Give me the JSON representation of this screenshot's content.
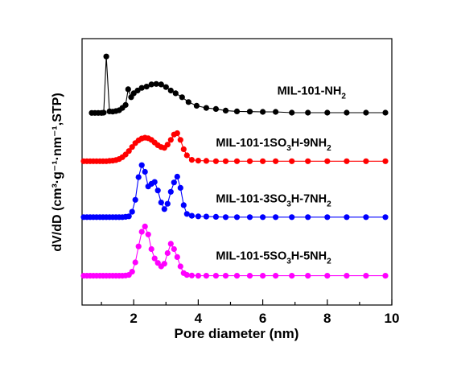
{
  "chart_data": {
    "type": "line",
    "title": "",
    "xlabel": "Pore diameter (nm)",
    "ylabel": "dV/dD (cm³·g⁻¹·nm⁻¹,STP)",
    "xlim": [
      0.4,
      10
    ],
    "ylim": [
      0,
      10
    ],
    "xticks": [
      2,
      4,
      6,
      8,
      10
    ],
    "grid": false,
    "legend": "inline labels to the right of each curve",
    "y_ticks_labeled": false,
    "series": [
      {
        "name": "MIL-101-NH₂",
        "color": "#000000",
        "x": [
          0.7,
          0.8,
          0.9,
          1.0,
          1.07,
          1.15,
          1.25,
          1.35,
          1.45,
          1.55,
          1.65,
          1.75,
          1.83,
          1.92,
          2.0,
          2.12,
          2.25,
          2.4,
          2.55,
          2.7,
          2.85,
          3.0,
          3.15,
          3.3,
          3.5,
          3.7,
          3.95,
          4.25,
          4.55,
          4.85,
          5.2,
          5.6,
          6.0,
          6.4,
          6.9,
          7.4,
          8.0,
          8.6,
          9.2,
          9.8
        ],
        "y": [
          7.21,
          7.21,
          7.21,
          7.21,
          7.22,
          9.33,
          7.27,
          7.26,
          7.28,
          7.31,
          7.4,
          7.51,
          8.1,
          7.8,
          7.95,
          8.05,
          8.15,
          8.2,
          8.28,
          8.3,
          8.28,
          8.18,
          8.05,
          7.95,
          7.8,
          7.62,
          7.48,
          7.4,
          7.36,
          7.3,
          7.27,
          7.26,
          7.25,
          7.25,
          7.22,
          7.22,
          7.22,
          7.22,
          7.22,
          7.22
        ]
      },
      {
        "name": "MIL-101-1SO₃H-9NH₂",
        "color": "#ff0000",
        "x": [
          0.45,
          0.55,
          0.65,
          0.75,
          0.85,
          0.95,
          1.05,
          1.15,
          1.25,
          1.35,
          1.45,
          1.55,
          1.65,
          1.75,
          1.85,
          1.95,
          2.05,
          2.15,
          2.25,
          2.35,
          2.45,
          2.55,
          2.65,
          2.75,
          2.85,
          2.95,
          3.05,
          3.15,
          3.25,
          3.35,
          3.45,
          3.55,
          3.65,
          3.8,
          4.0,
          4.25,
          4.55,
          4.85,
          5.2,
          5.6,
          6.0,
          6.4,
          6.9,
          7.4,
          8.0,
          8.6,
          9.2,
          9.8
        ],
        "y": [
          5.4,
          5.4,
          5.4,
          5.4,
          5.4,
          5.4,
          5.4,
          5.4,
          5.41,
          5.42,
          5.44,
          5.48,
          5.55,
          5.65,
          5.78,
          5.93,
          6.08,
          6.18,
          6.25,
          6.28,
          6.26,
          6.2,
          6.1,
          6.0,
          5.93,
          5.9,
          6.02,
          6.2,
          6.4,
          6.45,
          6.2,
          5.85,
          5.62,
          5.45,
          5.42,
          5.41,
          5.4,
          5.4,
          5.4,
          5.4,
          5.4,
          5.4,
          5.4,
          5.4,
          5.4,
          5.4,
          5.4,
          5.4
        ]
      },
      {
        "name": "MIL-101-3SO₃H-7NH₂",
        "color": "#0000ff",
        "x": [
          0.45,
          0.55,
          0.65,
          0.75,
          0.85,
          0.95,
          1.05,
          1.15,
          1.25,
          1.35,
          1.45,
          1.55,
          1.65,
          1.75,
          1.85,
          1.95,
          2.05,
          2.15,
          2.25,
          2.35,
          2.45,
          2.55,
          2.65,
          2.75,
          2.85,
          2.95,
          3.05,
          3.15,
          3.25,
          3.35,
          3.45,
          3.55,
          3.65,
          3.8,
          4.0,
          4.25,
          4.55,
          4.85,
          5.2,
          5.6,
          6.0,
          6.4,
          6.9,
          7.4,
          8.0,
          8.6,
          9.2,
          9.8
        ],
        "y": [
          3.3,
          3.3,
          3.3,
          3.3,
          3.3,
          3.3,
          3.3,
          3.3,
          3.3,
          3.3,
          3.3,
          3.3,
          3.3,
          3.31,
          3.33,
          3.5,
          3.95,
          4.8,
          5.25,
          5.0,
          4.45,
          4.55,
          4.62,
          4.3,
          3.85,
          3.6,
          3.8,
          4.25,
          4.6,
          4.82,
          4.4,
          3.75,
          3.42,
          3.35,
          3.33,
          3.32,
          3.31,
          3.3,
          3.3,
          3.3,
          3.3,
          3.3,
          3.3,
          3.3,
          3.3,
          3.3,
          3.3,
          3.3
        ]
      },
      {
        "name": "MIL-101-5SO₃H-5NH₂",
        "color": "#ff00ff",
        "x": [
          0.45,
          0.55,
          0.65,
          0.75,
          0.85,
          0.95,
          1.05,
          1.15,
          1.25,
          1.35,
          1.45,
          1.55,
          1.65,
          1.75,
          1.85,
          1.95,
          2.05,
          2.15,
          2.25,
          2.35,
          2.45,
          2.55,
          2.65,
          2.75,
          2.85,
          2.95,
          3.05,
          3.15,
          3.25,
          3.35,
          3.45,
          3.55,
          3.65,
          3.8,
          4.0,
          4.25,
          4.55,
          4.85,
          5.2,
          5.6,
          6.0,
          6.4,
          6.9,
          7.4,
          8.0,
          8.6,
          9.2,
          9.8
        ],
        "y": [
          1.1,
          1.1,
          1.1,
          1.1,
          1.1,
          1.1,
          1.1,
          1.1,
          1.1,
          1.1,
          1.1,
          1.1,
          1.1,
          1.11,
          1.13,
          1.25,
          1.6,
          2.2,
          2.75,
          2.95,
          2.65,
          2.1,
          1.75,
          1.58,
          1.45,
          1.55,
          1.95,
          2.3,
          2.1,
          1.8,
          1.45,
          1.2,
          1.13,
          1.11,
          1.1,
          1.1,
          1.1,
          1.1,
          1.1,
          1.1,
          1.1,
          1.1,
          1.1,
          1.1,
          1.1,
          1.1,
          1.1,
          1.1
        ]
      }
    ],
    "annotations": [
      {
        "parts": [
          [
            "MIL-101-NH",
            ""
          ],
          [
            "2",
            "sub"
          ]
        ],
        "x": 6.45,
        "y": 7.9
      },
      {
        "parts": [
          [
            "MIL-101-1SO",
            ""
          ],
          [
            "3",
            "sub"
          ],
          [
            "H-9NH",
            ""
          ],
          [
            "2",
            "sub"
          ]
        ],
        "x": 4.55,
        "y": 5.95
      },
      {
        "parts": [
          [
            "MIL-101-3SO",
            ""
          ],
          [
            "3",
            "sub"
          ],
          [
            "H-7NH",
            ""
          ],
          [
            "2",
            "sub"
          ]
        ],
        "x": 4.55,
        "y": 3.85
      },
      {
        "parts": [
          [
            "MIL-101-5SO",
            ""
          ],
          [
            "3",
            "sub"
          ],
          [
            "H-5NH",
            ""
          ],
          [
            "2",
            "sub"
          ]
        ],
        "x": 4.55,
        "y": 1.7
      }
    ]
  }
}
